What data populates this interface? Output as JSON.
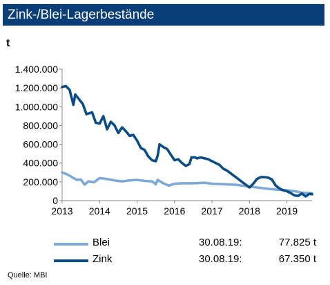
{
  "title": "Zink-/Blei-Lagerbestände",
  "source": "Quelle: MBI",
  "colors": {
    "header_bg": "#0a3e78",
    "blei": "#7ea8d6",
    "zink": "#0a4d86",
    "axis": "#888888"
  },
  "legend": [
    {
      "series": "Blei",
      "date": "30.08.19:",
      "value": "77.825 t"
    },
    {
      "series": "Zink",
      "date": "30.08.19:",
      "value": "67.350 t"
    }
  ],
  "chart_data": {
    "type": "line",
    "ylabel": "t",
    "xlabel": "",
    "ylim": [
      0,
      1400000
    ],
    "xlim": [
      2013,
      2019.67
    ],
    "y_ticks": [
      {
        "value": 0,
        "label": "0"
      },
      {
        "value": 200000,
        "label": "200.000"
      },
      {
        "value": 400000,
        "label": "400.000"
      },
      {
        "value": 600000,
        "label": "600.000"
      },
      {
        "value": 800000,
        "label": "800.000"
      },
      {
        "value": 1000000,
        "label": "1.000.000"
      },
      {
        "value": 1200000,
        "label": "1.200.000"
      },
      {
        "value": 1400000,
        "label": "1.400.000"
      }
    ],
    "x_ticks": [
      {
        "value": 2013,
        "label": "2013"
      },
      {
        "value": 2014,
        "label": "2014"
      },
      {
        "value": 2015,
        "label": "2015"
      },
      {
        "value": 2016,
        "label": "2016"
      },
      {
        "value": 2017,
        "label": "2017"
      },
      {
        "value": 2018,
        "label": "2018"
      },
      {
        "value": 2019,
        "label": "2019"
      }
    ],
    "grid": false,
    "series": [
      {
        "name": "Blei",
        "color": "#7ea8d6",
        "x": [
          2013.0,
          2013.1,
          2013.2,
          2013.3,
          2013.4,
          2013.5,
          2013.6,
          2013.7,
          2013.85,
          2014.0,
          2014.2,
          2014.4,
          2014.6,
          2014.8,
          2015.0,
          2015.2,
          2015.4,
          2015.5,
          2015.55,
          2015.7,
          2015.85,
          2016.0,
          2016.2,
          2016.5,
          2016.8,
          2017.0,
          2017.3,
          2017.6,
          2017.9,
          2018.2,
          2018.5,
          2018.8,
          2019.0,
          2019.2,
          2019.4,
          2019.55,
          2019.67
        ],
        "y": [
          300000,
          285000,
          265000,
          240000,
          220000,
          225000,
          170000,
          205000,
          195000,
          240000,
          230000,
          215000,
          205000,
          215000,
          220000,
          210000,
          205000,
          175000,
          220000,
          185000,
          160000,
          180000,
          185000,
          185000,
          190000,
          180000,
          175000,
          170000,
          155000,
          140000,
          125000,
          115000,
          110000,
          100000,
          85000,
          80000,
          78000
        ]
      },
      {
        "name": "Zink",
        "color": "#0a4d86",
        "x": [
          2013.0,
          2013.1,
          2013.2,
          2013.3,
          2013.35,
          2013.45,
          2013.55,
          2013.65,
          2013.8,
          2013.9,
          2014.0,
          2014.1,
          2014.2,
          2014.3,
          2014.4,
          2014.5,
          2014.6,
          2014.7,
          2014.8,
          2014.9,
          2015.0,
          2015.1,
          2015.2,
          2015.3,
          2015.4,
          2015.5,
          2015.55,
          2015.6,
          2015.7,
          2015.8,
          2015.9,
          2016.0,
          2016.1,
          2016.2,
          2016.3,
          2016.4,
          2016.45,
          2016.55,
          2016.6,
          2016.7,
          2016.8,
          2016.9,
          2017.0,
          2017.1,
          2017.2,
          2017.3,
          2017.4,
          2017.5,
          2017.6,
          2017.7,
          2017.8,
          2017.9,
          2018.0,
          2018.1,
          2018.2,
          2018.3,
          2018.4,
          2018.5,
          2018.6,
          2018.7,
          2018.8,
          2018.9,
          2019.0,
          2019.1,
          2019.2,
          2019.3,
          2019.4,
          2019.5,
          2019.6,
          2019.67
        ],
        "y": [
          1210000,
          1220000,
          1180000,
          1020000,
          1130000,
          1080000,
          1030000,
          920000,
          940000,
          830000,
          820000,
          900000,
          760000,
          840000,
          800000,
          720000,
          780000,
          740000,
          690000,
          700000,
          640000,
          560000,
          540000,
          470000,
          430000,
          420000,
          480000,
          600000,
          570000,
          550000,
          490000,
          430000,
          440000,
          400000,
          370000,
          390000,
          460000,
          460000,
          450000,
          460000,
          450000,
          440000,
          420000,
          400000,
          380000,
          340000,
          320000,
          290000,
          260000,
          230000,
          200000,
          170000,
          140000,
          180000,
          230000,
          250000,
          250000,
          245000,
          225000,
          160000,
          130000,
          110000,
          100000,
          80000,
          55000,
          50000,
          75000,
          45000,
          72000,
          67000
        ]
      }
    ]
  }
}
